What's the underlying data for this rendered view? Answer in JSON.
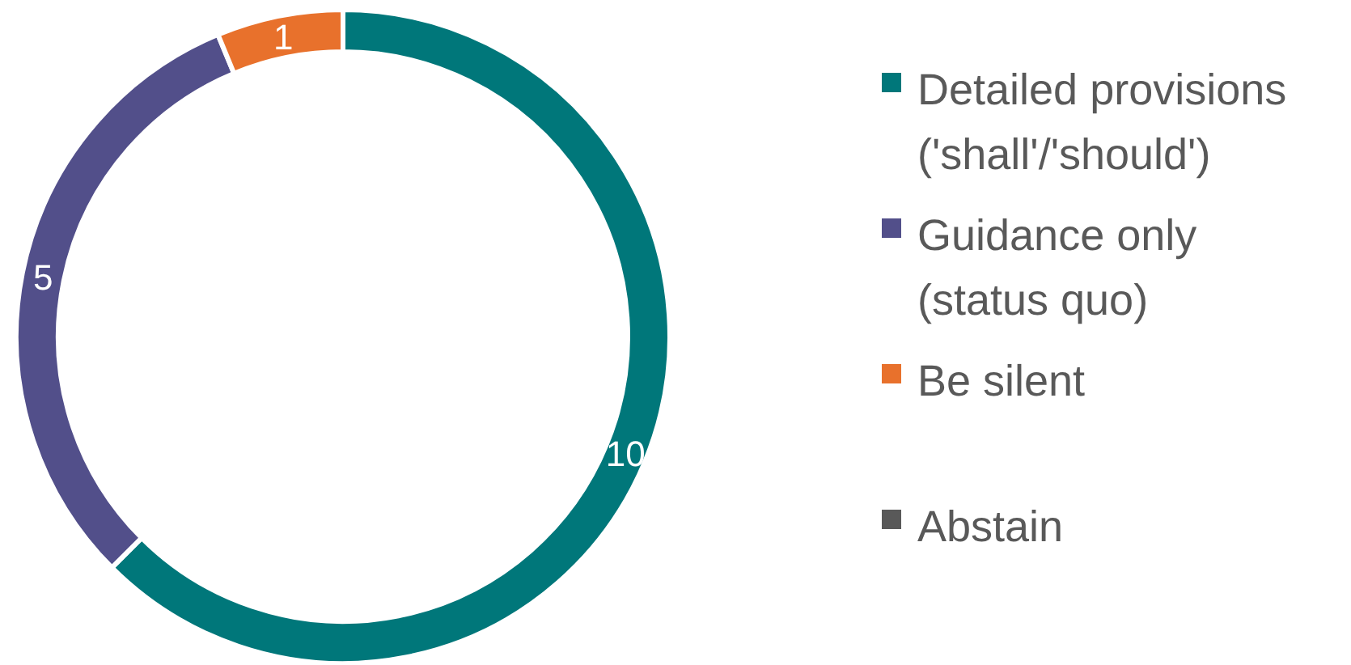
{
  "chart_data": {
    "type": "donut",
    "categories": [
      "Detailed provisions ('shall'/'should')",
      "Guidance only (status quo)",
      "Be silent",
      "Abstain"
    ],
    "values": [
      10,
      5,
      1,
      0
    ],
    "colors": [
      "#00777a",
      "#524f8a",
      "#e8712c",
      "#595959"
    ],
    "value_labels": [
      "10",
      "5",
      "1",
      null
    ],
    "legend": "right"
  }
}
